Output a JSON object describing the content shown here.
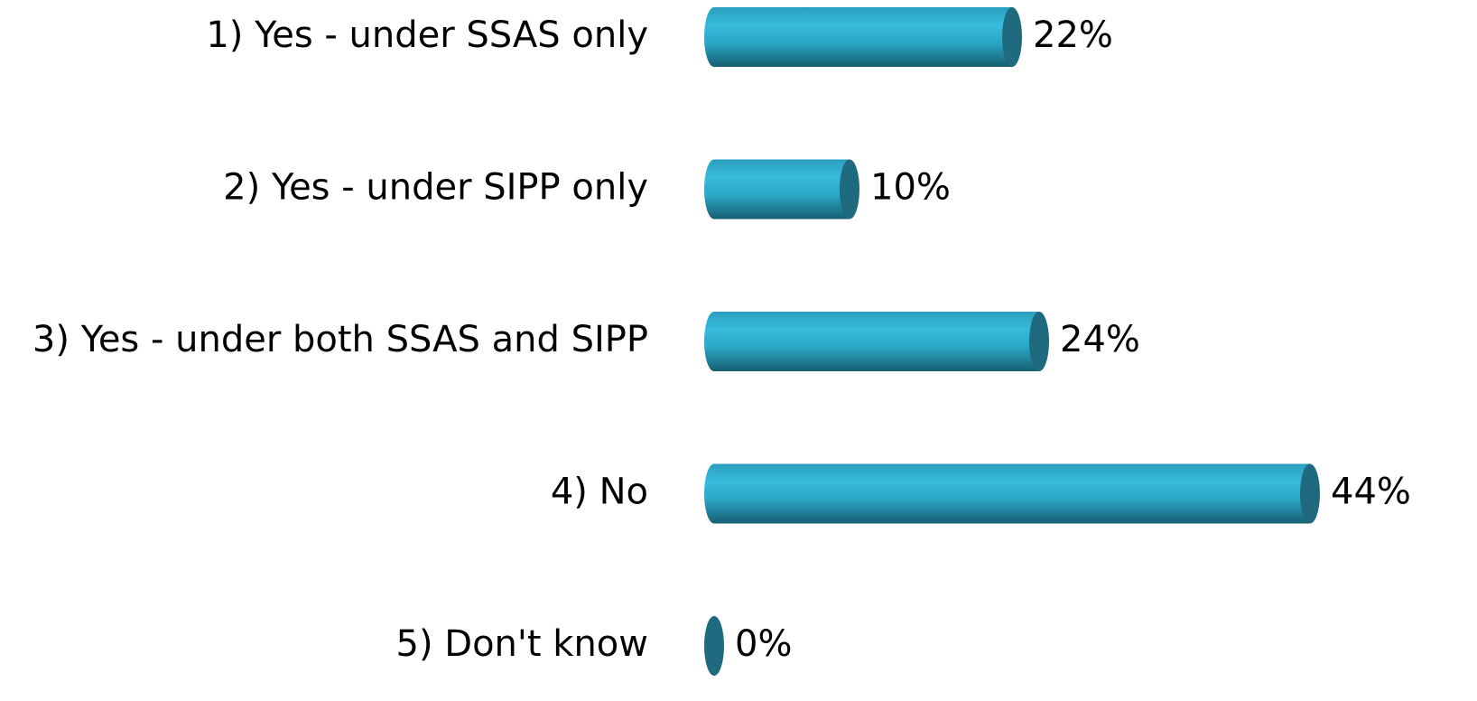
{
  "chart_data": {
    "type": "bar",
    "orientation": "horizontal",
    "categories": [
      "1) Yes - under SSAS only",
      "2) Yes - under SIPP only",
      "3) Yes - under both SSAS and SIPP",
      "4) No",
      "5) Don't know"
    ],
    "values": [
      22,
      10,
      24,
      44,
      0
    ],
    "value_labels": [
      "22%",
      "10%",
      "24%",
      "44%",
      "0%"
    ],
    "color": "#2fb0d0"
  }
}
